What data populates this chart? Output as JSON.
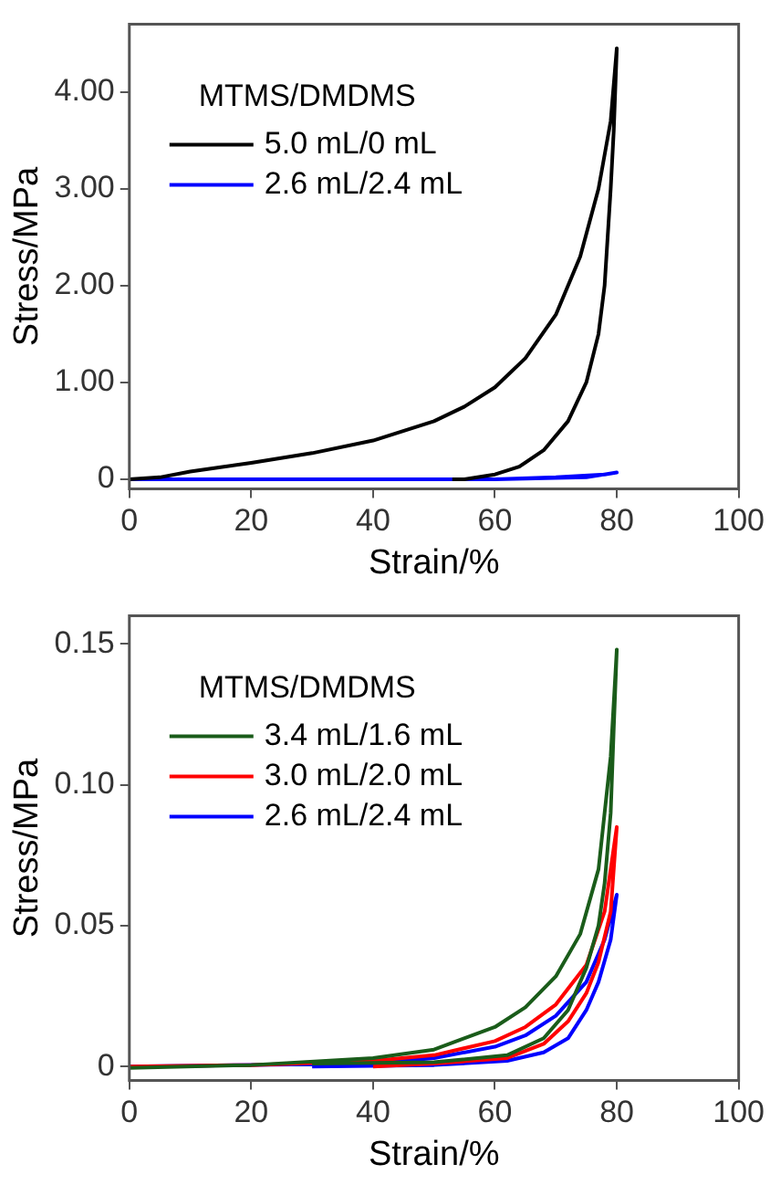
{
  "chart_data": [
    {
      "type": "line",
      "xlabel": "Strain/%",
      "ylabel": "Stress/MPa",
      "legend_title": "MTMS/DMDMS",
      "legend": "top left",
      "marker": "none",
      "line_style": "solid",
      "grid": false,
      "xlim": [
        0,
        100
      ],
      "xticks": [
        0,
        20,
        40,
        60,
        80,
        100
      ],
      "ylim": [
        -0.1,
        4.7
      ],
      "yticks": [
        0,
        {
          "value": 1,
          "label": "1.00"
        },
        {
          "value": 2,
          "label": "2.00"
        },
        {
          "value": 3,
          "label": "3.00"
        },
        {
          "value": 4,
          "label": "4.00"
        }
      ],
      "series": [
        {
          "name": "5.0 mL/0 mL",
          "color": "#000000",
          "x": [
            0,
            5,
            10,
            20,
            30,
            40,
            50,
            55,
            60,
            65,
            70,
            74,
            77,
            79,
            80,
            79.5,
            79,
            78,
            77,
            75,
            72,
            68,
            64,
            60,
            55,
            53
          ],
          "values": [
            0,
            0.02,
            0.08,
            0.17,
            0.27,
            0.4,
            0.6,
            0.75,
            0.95,
            1.25,
            1.7,
            2.3,
            3.0,
            3.7,
            4.45,
            3.6,
            3.0,
            2.0,
            1.5,
            1.0,
            0.6,
            0.3,
            0.13,
            0.05,
            0.0,
            0
          ]
        },
        {
          "name": "2.6 mL/2.4 mL",
          "color": "#0000ff",
          "x": [
            0,
            60,
            70,
            78,
            80,
            75,
            60
          ],
          "values": [
            0,
            0,
            0.02,
            0.05,
            0.07,
            0.02,
            0
          ]
        }
      ]
    },
    {
      "type": "line",
      "xlabel": "Strain/%",
      "ylabel": "Stress/MPa",
      "legend_title": "MTMS/DMDMS",
      "legend": "top left",
      "marker": "none",
      "line_style": "solid",
      "grid": false,
      "xlim": [
        0,
        100
      ],
      "xticks": [
        0,
        20,
        40,
        60,
        80,
        100
      ],
      "ylim": [
        -0.005,
        0.16
      ],
      "yticks": [
        0,
        0.05,
        {
          "value": 0.1,
          "label": "0.10"
        },
        0.15
      ],
      "series": [
        {
          "name": "3.4 mL/1.6 mL",
          "color": "#1a5c1a",
          "x": [
            0,
            20,
            40,
            50,
            60,
            65,
            70,
            74,
            77,
            79,
            80,
            79.5,
            79,
            78,
            77,
            75,
            72,
            68,
            62,
            50,
            30
          ],
          "values": [
            -0.0005,
            0.0005,
            0.003,
            0.006,
            0.014,
            0.021,
            0.032,
            0.047,
            0.07,
            0.11,
            0.148,
            0.12,
            0.09,
            0.065,
            0.05,
            0.035,
            0.02,
            0.01,
            0.004,
            0.0015,
            0.001
          ]
        },
        {
          "name": "3.0 mL/2.0 mL",
          "color": "#ff0000",
          "x": [
            0,
            20,
            40,
            50,
            60,
            65,
            70,
            75,
            78,
            80,
            79.5,
            79,
            77,
            75,
            72,
            68,
            62,
            50,
            40
          ],
          "values": [
            0,
            0.0005,
            0.002,
            0.004,
            0.009,
            0.014,
            0.022,
            0.036,
            0.055,
            0.085,
            0.07,
            0.055,
            0.037,
            0.026,
            0.016,
            0.008,
            0.003,
            0.001,
            0
          ]
        },
        {
          "name": "2.6 mL/2.4 mL",
          "color": "#0000ff",
          "x": [
            0,
            40,
            50,
            60,
            65,
            70,
            75,
            78,
            80,
            79,
            77,
            75,
            72,
            68,
            62,
            50,
            30
          ],
          "values": [
            0,
            0.001,
            0.003,
            0.007,
            0.011,
            0.018,
            0.03,
            0.045,
            0.061,
            0.045,
            0.03,
            0.02,
            0.01,
            0.005,
            0.002,
            0.0005,
            0
          ]
        }
      ]
    }
  ]
}
